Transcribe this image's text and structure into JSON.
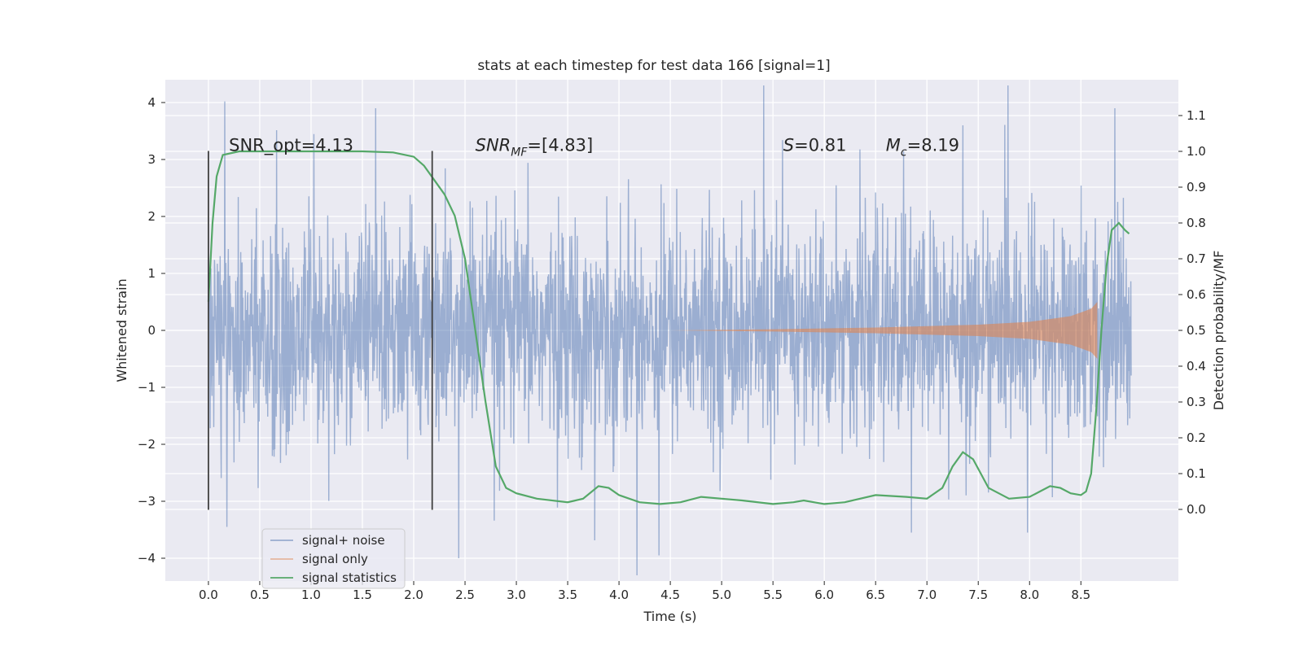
{
  "chart_data": {
    "type": "line",
    "title": "stats at each timestep for test data 166 [signal=1]",
    "xlabel": "Time (s)",
    "ylabel": "Whitened strain",
    "y2label": "Detection probability/MF",
    "xlim": [
      -0.42,
      9.45
    ],
    "ylim": [
      -4.4,
      4.4
    ],
    "y2lim": [
      -0.2,
      1.2
    ],
    "x_ticks": [
      0.0,
      0.5,
      1.0,
      1.5,
      2.0,
      2.5,
      3.0,
      3.5,
      4.0,
      4.5,
      5.0,
      5.5,
      6.0,
      6.5,
      7.0,
      7.5,
      8.0,
      8.5
    ],
    "x_tick_labels": [
      "0.0",
      "0.5",
      "1.0",
      "1.5",
      "2.0",
      "2.5",
      "3.0",
      "3.5",
      "4.0",
      "4.5",
      "5.0",
      "5.5",
      "6.0",
      "6.5",
      "7.0",
      "7.5",
      "8.0",
      "8.5"
    ],
    "y_ticks": [
      -4,
      -3,
      -2,
      -1,
      0,
      1,
      2,
      3,
      4
    ],
    "y_tick_labels": [
      "−4",
      "−3",
      "−2",
      "−1",
      "0",
      "1",
      "2",
      "3",
      "4"
    ],
    "y2_ticks": [
      0.0,
      0.1,
      0.2,
      0.3,
      0.4,
      0.5,
      0.6,
      0.7,
      0.8,
      0.9,
      1.0,
      1.1
    ],
    "y2_tick_labels": [
      "0.0",
      "0.1",
      "0.2",
      "0.3",
      "0.4",
      "0.5",
      "0.6",
      "0.7",
      "0.8",
      "0.9",
      "1.0",
      "1.1"
    ],
    "grid": true,
    "legend_position": "lower-left",
    "colors": {
      "signal_noise": "#4c72b0",
      "signal_only": "#dd8452",
      "statistics": "#55a868",
      "background": "#eaeaf2",
      "vline": "#404040"
    },
    "series": [
      {
        "name": "signal+ noise",
        "axis": "left",
        "x_range": [
          0.0,
          8.99
        ],
        "typical_amplitude": 1.25,
        "peak_values": [
          {
            "x": 0.16,
            "y": 4.02
          },
          {
            "x": 1.63,
            "y": 3.9
          },
          {
            "x": 8.83,
            "y": 3.9
          },
          {
            "x": 7.35,
            "y": 3.6
          },
          {
            "x": 0.18,
            "y": -3.45
          },
          {
            "x": 2.44,
            "y": -4.0
          },
          {
            "x": 4.39,
            "y": -3.95
          },
          {
            "x": 6.85,
            "y": -3.55
          },
          {
            "x": 7.98,
            "y": -3.55
          }
        ]
      },
      {
        "name": "signal only",
        "axis": "left",
        "envelope": [
          [
            4.5,
            0.0
          ],
          [
            5.5,
            0.02
          ],
          [
            6.5,
            0.05
          ],
          [
            7.5,
            0.1
          ],
          [
            8.0,
            0.15
          ],
          [
            8.4,
            0.25
          ],
          [
            8.6,
            0.38
          ],
          [
            8.66,
            0.5
          ]
        ]
      },
      {
        "name": "signal statistics",
        "axis": "right",
        "points": [
          [
            0.0,
            0.58
          ],
          [
            0.04,
            0.8
          ],
          [
            0.08,
            0.93
          ],
          [
            0.14,
            0.99
          ],
          [
            0.3,
            1.0
          ],
          [
            1.0,
            1.0
          ],
          [
            1.5,
            1.0
          ],
          [
            1.8,
            0.997
          ],
          [
            2.0,
            0.985
          ],
          [
            2.1,
            0.96
          ],
          [
            2.2,
            0.92
          ],
          [
            2.3,
            0.88
          ],
          [
            2.4,
            0.82
          ],
          [
            2.5,
            0.7
          ],
          [
            2.6,
            0.5
          ],
          [
            2.7,
            0.3
          ],
          [
            2.8,
            0.12
          ],
          [
            2.9,
            0.06
          ],
          [
            3.0,
            0.045
          ],
          [
            3.2,
            0.03
          ],
          [
            3.5,
            0.02
          ],
          [
            3.65,
            0.03
          ],
          [
            3.8,
            0.065
          ],
          [
            3.9,
            0.06
          ],
          [
            4.0,
            0.04
          ],
          [
            4.2,
            0.02
          ],
          [
            4.4,
            0.015
          ],
          [
            4.6,
            0.02
          ],
          [
            4.8,
            0.035
          ],
          [
            5.0,
            0.03
          ],
          [
            5.2,
            0.025
          ],
          [
            5.5,
            0.015
          ],
          [
            5.7,
            0.02
          ],
          [
            5.8,
            0.025
          ],
          [
            6.0,
            0.015
          ],
          [
            6.2,
            0.02
          ],
          [
            6.5,
            0.04
          ],
          [
            6.8,
            0.035
          ],
          [
            7.0,
            0.03
          ],
          [
            7.15,
            0.06
          ],
          [
            7.25,
            0.12
          ],
          [
            7.35,
            0.16
          ],
          [
            7.45,
            0.14
          ],
          [
            7.6,
            0.06
          ],
          [
            7.8,
            0.03
          ],
          [
            8.0,
            0.035
          ],
          [
            8.1,
            0.05
          ],
          [
            8.2,
            0.065
          ],
          [
            8.3,
            0.06
          ],
          [
            8.4,
            0.045
          ],
          [
            8.5,
            0.04
          ],
          [
            8.55,
            0.05
          ],
          [
            8.6,
            0.1
          ],
          [
            8.65,
            0.28
          ],
          [
            8.7,
            0.5
          ],
          [
            8.75,
            0.68
          ],
          [
            8.8,
            0.78
          ],
          [
            8.87,
            0.8
          ],
          [
            8.93,
            0.78
          ],
          [
            8.97,
            0.77
          ]
        ]
      }
    ],
    "vertical_lines": [
      {
        "x": 0.0,
        "y_from": -3.15,
        "y_to": 3.15
      },
      {
        "x": 2.18,
        "y_from": -3.15,
        "y_to": 3.15
      }
    ],
    "annotations": [
      {
        "text": "SNR_opt=4.13",
        "x": 0.2,
        "y": 3.15
      },
      {
        "text": "SNR_MF=[4.83]",
        "x": 2.6,
        "y": 3.15
      },
      {
        "text": "S=0.81",
        "x": 5.6,
        "y": 3.15
      },
      {
        "text": "M_c=8.19",
        "x": 6.6,
        "y": 3.15
      }
    ],
    "legend": [
      "signal+ noise",
      "signal only",
      "signal statistics"
    ]
  }
}
